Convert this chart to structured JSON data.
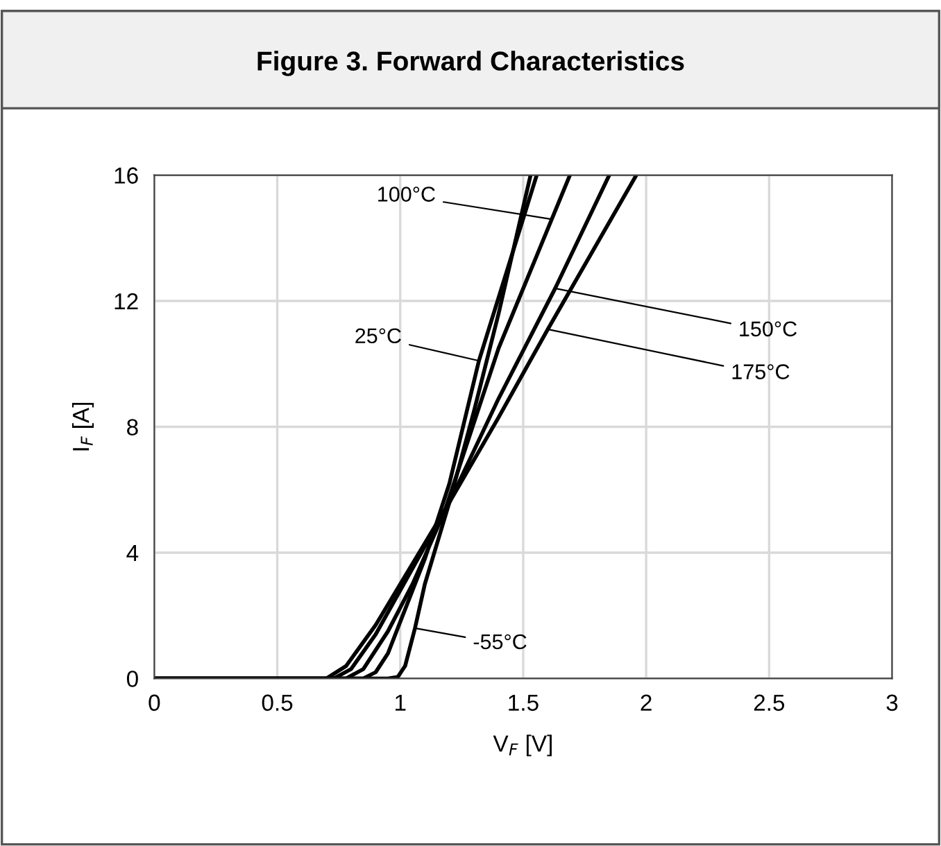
{
  "chart_data": {
    "type": "line",
    "title": "Figure 3. Forward Characteristics",
    "xlabel": "V$_{F}$ [V]",
    "ylabel": "I$_{F}$ [A]",
    "xlim": [
      0,
      3
    ],
    "xticks": [
      0,
      0.5,
      1,
      1.5,
      2,
      2.5,
      3
    ],
    "ylim": [
      0,
      16
    ],
    "yticks": [
      0,
      4,
      8,
      12,
      16
    ],
    "grid": true,
    "legend": false,
    "marker": "none",
    "line_style": "solid",
    "series": [
      {
        "color": "#000000",
        "x": [
          0,
          0.95,
          0.99,
          1.02,
          1.06,
          1.1,
          1.2,
          1.3,
          1.4,
          1.53
        ],
        "values": [
          0,
          0,
          0.05,
          0.4,
          1.6,
          3.0,
          5.6,
          8.5,
          11.6,
          16
        ]
      },
      {
        "color": "#000000",
        "x": [
          0,
          0.85,
          0.9,
          0.95,
          1.0,
          1.1,
          1.2,
          1.32,
          1.555
        ],
        "values": [
          0,
          0,
          0.2,
          0.8,
          1.8,
          3.8,
          6.2,
          10.1,
          16
        ]
      },
      {
        "color": "#000000",
        "x": [
          0,
          0.78,
          0.85,
          0.95,
          1.05,
          1.18,
          1.4,
          1.69
        ],
        "values": [
          0,
          0,
          0.3,
          1.5,
          3.0,
          5.3,
          10.5,
          16
        ]
      },
      {
        "color": "#000000",
        "x": [
          0,
          0.73,
          0.8,
          0.9,
          1.0,
          1.1,
          1.2,
          1.4,
          1.63,
          1.85
        ],
        "values": [
          0,
          0,
          0.3,
          1.4,
          2.8,
          4.2,
          5.6,
          8.9,
          12.4,
          16
        ]
      },
      {
        "color": "#000000",
        "x": [
          0,
          0.7,
          0.78,
          0.9,
          1.0,
          1.1,
          1.2,
          1.4,
          1.6,
          1.96
        ],
        "values": [
          0,
          0,
          0.4,
          1.7,
          3.0,
          4.3,
          5.6,
          8.3,
          11.1,
          16
        ]
      }
    ],
    "annotations": [
      {
        "text": "-55°C",
        "x": 1.06,
        "y": 1.6
      },
      {
        "text": "25°C",
        "x": 1.32,
        "y": 10.1
      },
      {
        "text": "100°C",
        "x": 1.615,
        "y": 14.6
      },
      {
        "text": "150°C",
        "x": 1.63,
        "y": 12.4
      },
      {
        "text": "175°C",
        "x": 1.6,
        "y": 11.1
      }
    ]
  }
}
